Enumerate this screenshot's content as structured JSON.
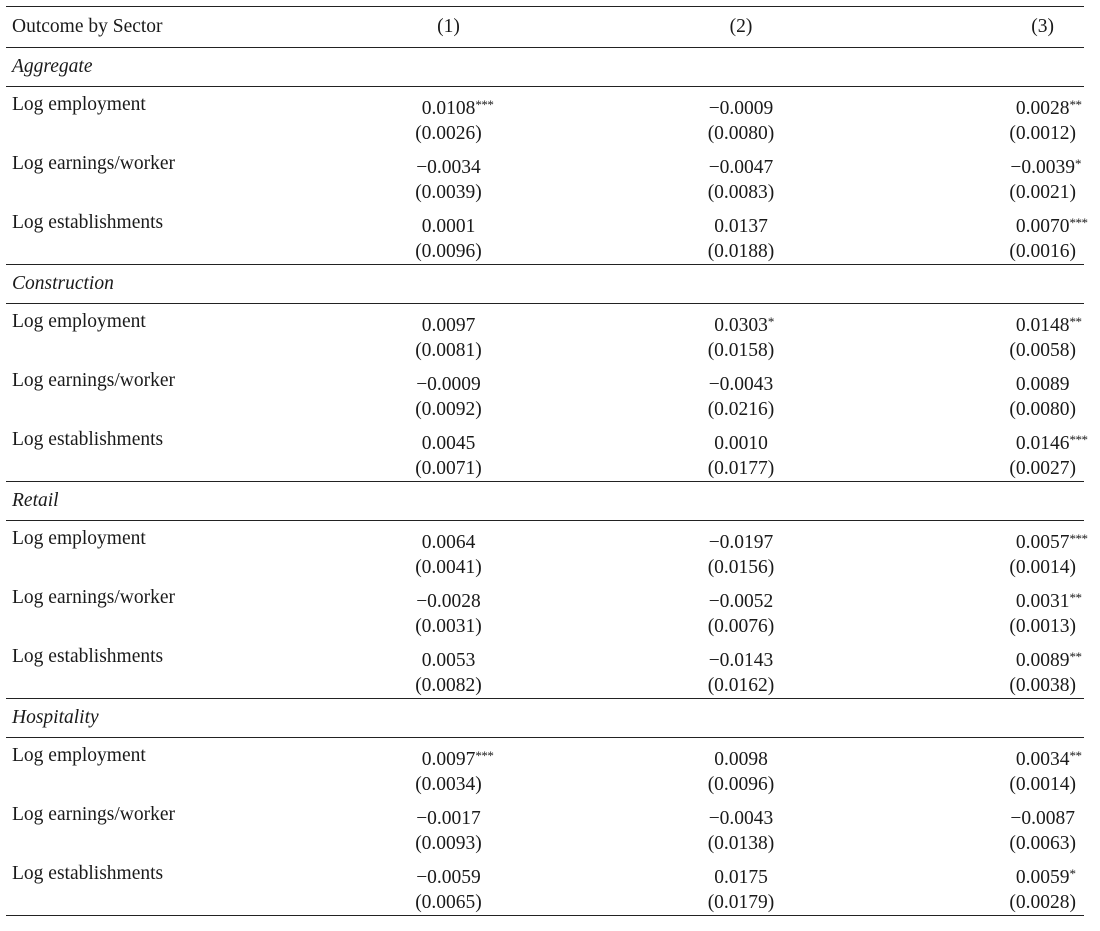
{
  "header": {
    "col0": "Outcome by Sector",
    "col1": "(1)",
    "col2": "(2)",
    "col3": "(3)"
  },
  "sectors": [
    {
      "name": "Aggregate",
      "rows": [
        {
          "label": "Log employment",
          "c1": {
            "coef": "0.0108",
            "stars": "***",
            "se": "(0.0026)"
          },
          "c2": {
            "coef": "−0.0009",
            "stars": "",
            "se": "(0.0080)"
          },
          "c3": {
            "coef": "0.0028",
            "stars": "**",
            "se": "(0.0012)"
          }
        },
        {
          "label": "Log earnings/worker",
          "c1": {
            "coef": "−0.0034",
            "stars": "",
            "se": "(0.0039)"
          },
          "c2": {
            "coef": "−0.0047",
            "stars": "",
            "se": "(0.0083)"
          },
          "c3": {
            "coef": "−0.0039",
            "stars": "*",
            "se": "(0.0021)"
          }
        },
        {
          "label": "Log establishments",
          "c1": {
            "coef": "0.0001",
            "stars": "",
            "se": "(0.0096)"
          },
          "c2": {
            "coef": "0.0137",
            "stars": "",
            "se": "(0.0188)"
          },
          "c3": {
            "coef": "0.0070",
            "stars": "***",
            "se": "(0.0016)"
          }
        }
      ]
    },
    {
      "name": "Construction",
      "rows": [
        {
          "label": "Log employment",
          "c1": {
            "coef": "0.0097",
            "stars": "",
            "se": "(0.0081)"
          },
          "c2": {
            "coef": "0.0303",
            "stars": "*",
            "se": "(0.0158)"
          },
          "c3": {
            "coef": "0.0148",
            "stars": "**",
            "se": "(0.0058)"
          }
        },
        {
          "label": "Log earnings/worker",
          "c1": {
            "coef": "−0.0009",
            "stars": "",
            "se": "(0.0092)"
          },
          "c2": {
            "coef": "−0.0043",
            "stars": "",
            "se": "(0.0216)"
          },
          "c3": {
            "coef": "0.0089",
            "stars": "",
            "se": "(0.0080)"
          }
        },
        {
          "label": "Log establishments",
          "c1": {
            "coef": "0.0045",
            "stars": "",
            "se": "(0.0071)"
          },
          "c2": {
            "coef": "0.0010",
            "stars": "",
            "se": "(0.0177)"
          },
          "c3": {
            "coef": "0.0146",
            "stars": "***",
            "se": "(0.0027)"
          }
        }
      ]
    },
    {
      "name": "Retail",
      "rows": [
        {
          "label": "Log employment",
          "c1": {
            "coef": "0.0064",
            "stars": "",
            "se": "(0.0041)"
          },
          "c2": {
            "coef": "−0.0197",
            "stars": "",
            "se": "(0.0156)"
          },
          "c3": {
            "coef": "0.0057",
            "stars": "***",
            "se": "(0.0014)"
          }
        },
        {
          "label": "Log earnings/worker",
          "c1": {
            "coef": "−0.0028",
            "stars": "",
            "se": "(0.0031)"
          },
          "c2": {
            "coef": "−0.0052",
            "stars": "",
            "se": "(0.0076)"
          },
          "c3": {
            "coef": "0.0031",
            "stars": "**",
            "se": "(0.0013)"
          }
        },
        {
          "label": "Log establishments",
          "c1": {
            "coef": "0.0053",
            "stars": "",
            "se": "(0.0082)"
          },
          "c2": {
            "coef": "−0.0143",
            "stars": "",
            "se": "(0.0162)"
          },
          "c3": {
            "coef": "0.0089",
            "stars": "**",
            "se": "(0.0038)"
          }
        }
      ]
    },
    {
      "name": "Hospitality",
      "rows": [
        {
          "label": "Log employment",
          "c1": {
            "coef": "0.0097",
            "stars": "***",
            "se": "(0.0034)"
          },
          "c2": {
            "coef": "0.0098",
            "stars": "",
            "se": "(0.0096)"
          },
          "c3": {
            "coef": "0.0034",
            "stars": "**",
            "se": "(0.0014)"
          }
        },
        {
          "label": "Log earnings/worker",
          "c1": {
            "coef": "−0.0017",
            "stars": "",
            "se": "(0.0093)"
          },
          "c2": {
            "coef": "−0.0043",
            "stars": "",
            "se": "(0.0138)"
          },
          "c3": {
            "coef": "−0.0087",
            "stars": "",
            "se": "(0.0063)"
          }
        },
        {
          "label": "Log establishments",
          "c1": {
            "coef": "−0.0059",
            "stars": "",
            "se": "(0.0065)"
          },
          "c2": {
            "coef": "0.0175",
            "stars": "",
            "se": "(0.0179)"
          },
          "c3": {
            "coef": "0.0059",
            "stars": "*",
            "se": "(0.0028)"
          }
        }
      ]
    }
  ]
}
